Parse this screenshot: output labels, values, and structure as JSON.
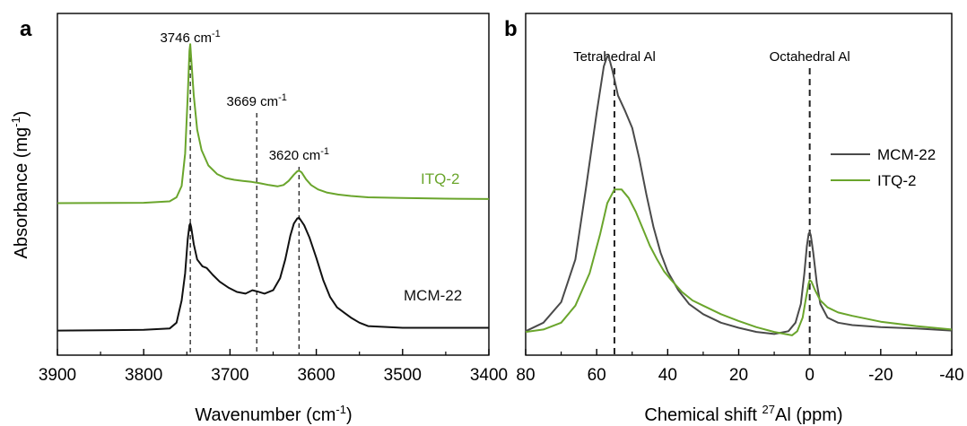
{
  "colors": {
    "green": "#6aa52c",
    "black": "#111111",
    "gray": "#4a4a4a"
  },
  "chart_data": [
    {
      "panel": "a",
      "type": "line",
      "xlabel_main": "Wavenumber (cm",
      "xlabel_sup": "-1",
      "xlabel_end": ")",
      "ylabel_main": "Absorbance (mg",
      "ylabel_sup": "-1",
      "ylabel_end": ")",
      "xlim": [
        3900,
        3400
      ],
      "ylim": [
        0,
        10
      ],
      "x_ticks": [
        "3900",
        "3800",
        "3700",
        "3600",
        "3500",
        "3400"
      ],
      "x_tick_values": [
        3900,
        3800,
        3700,
        3600,
        3500,
        3400
      ],
      "y_ticks_shown": false,
      "vlines": [
        {
          "x": 3746,
          "label_main": "3746 cm",
          "label_sup": "-1"
        },
        {
          "x": 3669,
          "label_main": "3669 cm",
          "label_sup": "-1"
        },
        {
          "x": 3620,
          "label_main": "3620 cm",
          "label_sup": "-1"
        }
      ],
      "series": [
        {
          "name": "ITQ-2",
          "color": "#6aa52c",
          "x": [
            3900,
            3800,
            3770,
            3762,
            3756,
            3752,
            3749,
            3747,
            3746,
            3745,
            3742,
            3738,
            3733,
            3725,
            3715,
            3705,
            3695,
            3685,
            3675,
            3665,
            3655,
            3645,
            3638,
            3632,
            3626,
            3622,
            3620,
            3617,
            3612,
            3606,
            3598,
            3588,
            3575,
            3560,
            3540,
            3500,
            3450,
            3400
          ],
          "y": [
            4.45,
            4.46,
            4.5,
            4.62,
            4.95,
            5.9,
            7.6,
            8.9,
            9.1,
            8.7,
            7.6,
            6.6,
            6.0,
            5.55,
            5.3,
            5.18,
            5.13,
            5.1,
            5.07,
            5.03,
            4.98,
            4.94,
            4.98,
            5.1,
            5.28,
            5.38,
            5.4,
            5.35,
            5.15,
            4.98,
            4.85,
            4.76,
            4.7,
            4.66,
            4.62,
            4.6,
            4.58,
            4.57
          ]
        },
        {
          "name": "MCM-22",
          "color": "#111111",
          "x": [
            3900,
            3800,
            3770,
            3762,
            3756,
            3752,
            3749,
            3747,
            3746,
            3745,
            3742,
            3738,
            3732,
            3727,
            3720,
            3712,
            3702,
            3692,
            3682,
            3674,
            3668,
            3660,
            3650,
            3642,
            3636,
            3630,
            3626,
            3622,
            3620,
            3618,
            3614,
            3608,
            3600,
            3592,
            3584,
            3576,
            3568,
            3560,
            3550,
            3540,
            3500,
            3450,
            3400
          ],
          "y": [
            0.72,
            0.74,
            0.78,
            0.95,
            1.6,
            2.4,
            3.4,
            3.8,
            3.85,
            3.75,
            3.25,
            2.8,
            2.6,
            2.55,
            2.35,
            2.15,
            1.98,
            1.85,
            1.8,
            1.9,
            1.86,
            1.8,
            1.9,
            2.25,
            2.8,
            3.5,
            3.85,
            4.0,
            4.02,
            3.95,
            3.8,
            3.45,
            2.85,
            2.2,
            1.7,
            1.4,
            1.25,
            1.1,
            0.95,
            0.85,
            0.8,
            0.8,
            0.8
          ]
        }
      ]
    },
    {
      "panel": "b",
      "type": "line",
      "xlabel_main": "Chemical shift ",
      "xlabel_sup": "27",
      "xlabel_end": "Al (ppm)",
      "xlim": [
        80,
        -40
      ],
      "ylim": [
        0,
        10
      ],
      "x_ticks": [
        "80",
        "60",
        "40",
        "20",
        "0",
        "-20",
        "-40"
      ],
      "x_tick_values": [
        80,
        60,
        40,
        20,
        0,
        -20,
        -40
      ],
      "y_ticks_shown": false,
      "legend_position": "top-right",
      "vlines": [
        {
          "x": 55,
          "label_main": "Tetrahedral Al",
          "label_sup": ""
        },
        {
          "x": 0,
          "label_main": "Octahedral Al",
          "label_sup": ""
        }
      ],
      "series": [
        {
          "name": "MCM-22",
          "color": "#4a4a4a",
          "x": [
            80,
            75,
            70,
            66,
            63,
            60,
            58,
            57,
            56.5,
            55.5,
            54,
            52,
            50,
            48,
            46,
            44,
            42,
            40,
            37,
            34,
            30,
            25,
            20,
            15,
            10,
            6,
            4,
            2.5,
            1.5,
            0.8,
            0.3,
            0,
            -0.3,
            -1,
            -2,
            -3,
            -5,
            -8,
            -12,
            -20,
            -30,
            -40
          ],
          "y": [
            0.7,
            0.95,
            1.55,
            2.8,
            4.9,
            7.1,
            8.45,
            8.75,
            8.7,
            8.3,
            7.6,
            7.15,
            6.65,
            5.75,
            4.7,
            3.75,
            3.0,
            2.45,
            1.9,
            1.5,
            1.2,
            0.95,
            0.8,
            0.68,
            0.62,
            0.7,
            0.95,
            1.5,
            2.4,
            3.2,
            3.55,
            3.6,
            3.5,
            3.0,
            2.1,
            1.5,
            1.1,
            0.95,
            0.88,
            0.82,
            0.78,
            0.72
          ]
        },
        {
          "name": "ITQ-2",
          "color": "#6aa52c",
          "x": [
            80,
            75,
            70,
            66,
            62,
            59,
            57,
            55,
            53,
            51,
            49,
            47,
            45,
            43,
            41,
            39,
            36,
            33,
            30,
            25,
            20,
            15,
            10,
            5,
            3.5,
            2,
            1,
            0.3,
            0,
            -0.5,
            -1.5,
            -3,
            -5,
            -8,
            -12,
            -20,
            -30,
            -40
          ],
          "y": [
            0.68,
            0.75,
            0.95,
            1.45,
            2.4,
            3.55,
            4.45,
            4.85,
            4.85,
            4.6,
            4.2,
            3.7,
            3.2,
            2.8,
            2.45,
            2.2,
            1.85,
            1.6,
            1.45,
            1.2,
            1.0,
            0.82,
            0.68,
            0.58,
            0.7,
            1.1,
            1.7,
            2.1,
            2.2,
            2.15,
            1.9,
            1.6,
            1.4,
            1.25,
            1.15,
            0.98,
            0.85,
            0.75
          ]
        }
      ]
    }
  ]
}
